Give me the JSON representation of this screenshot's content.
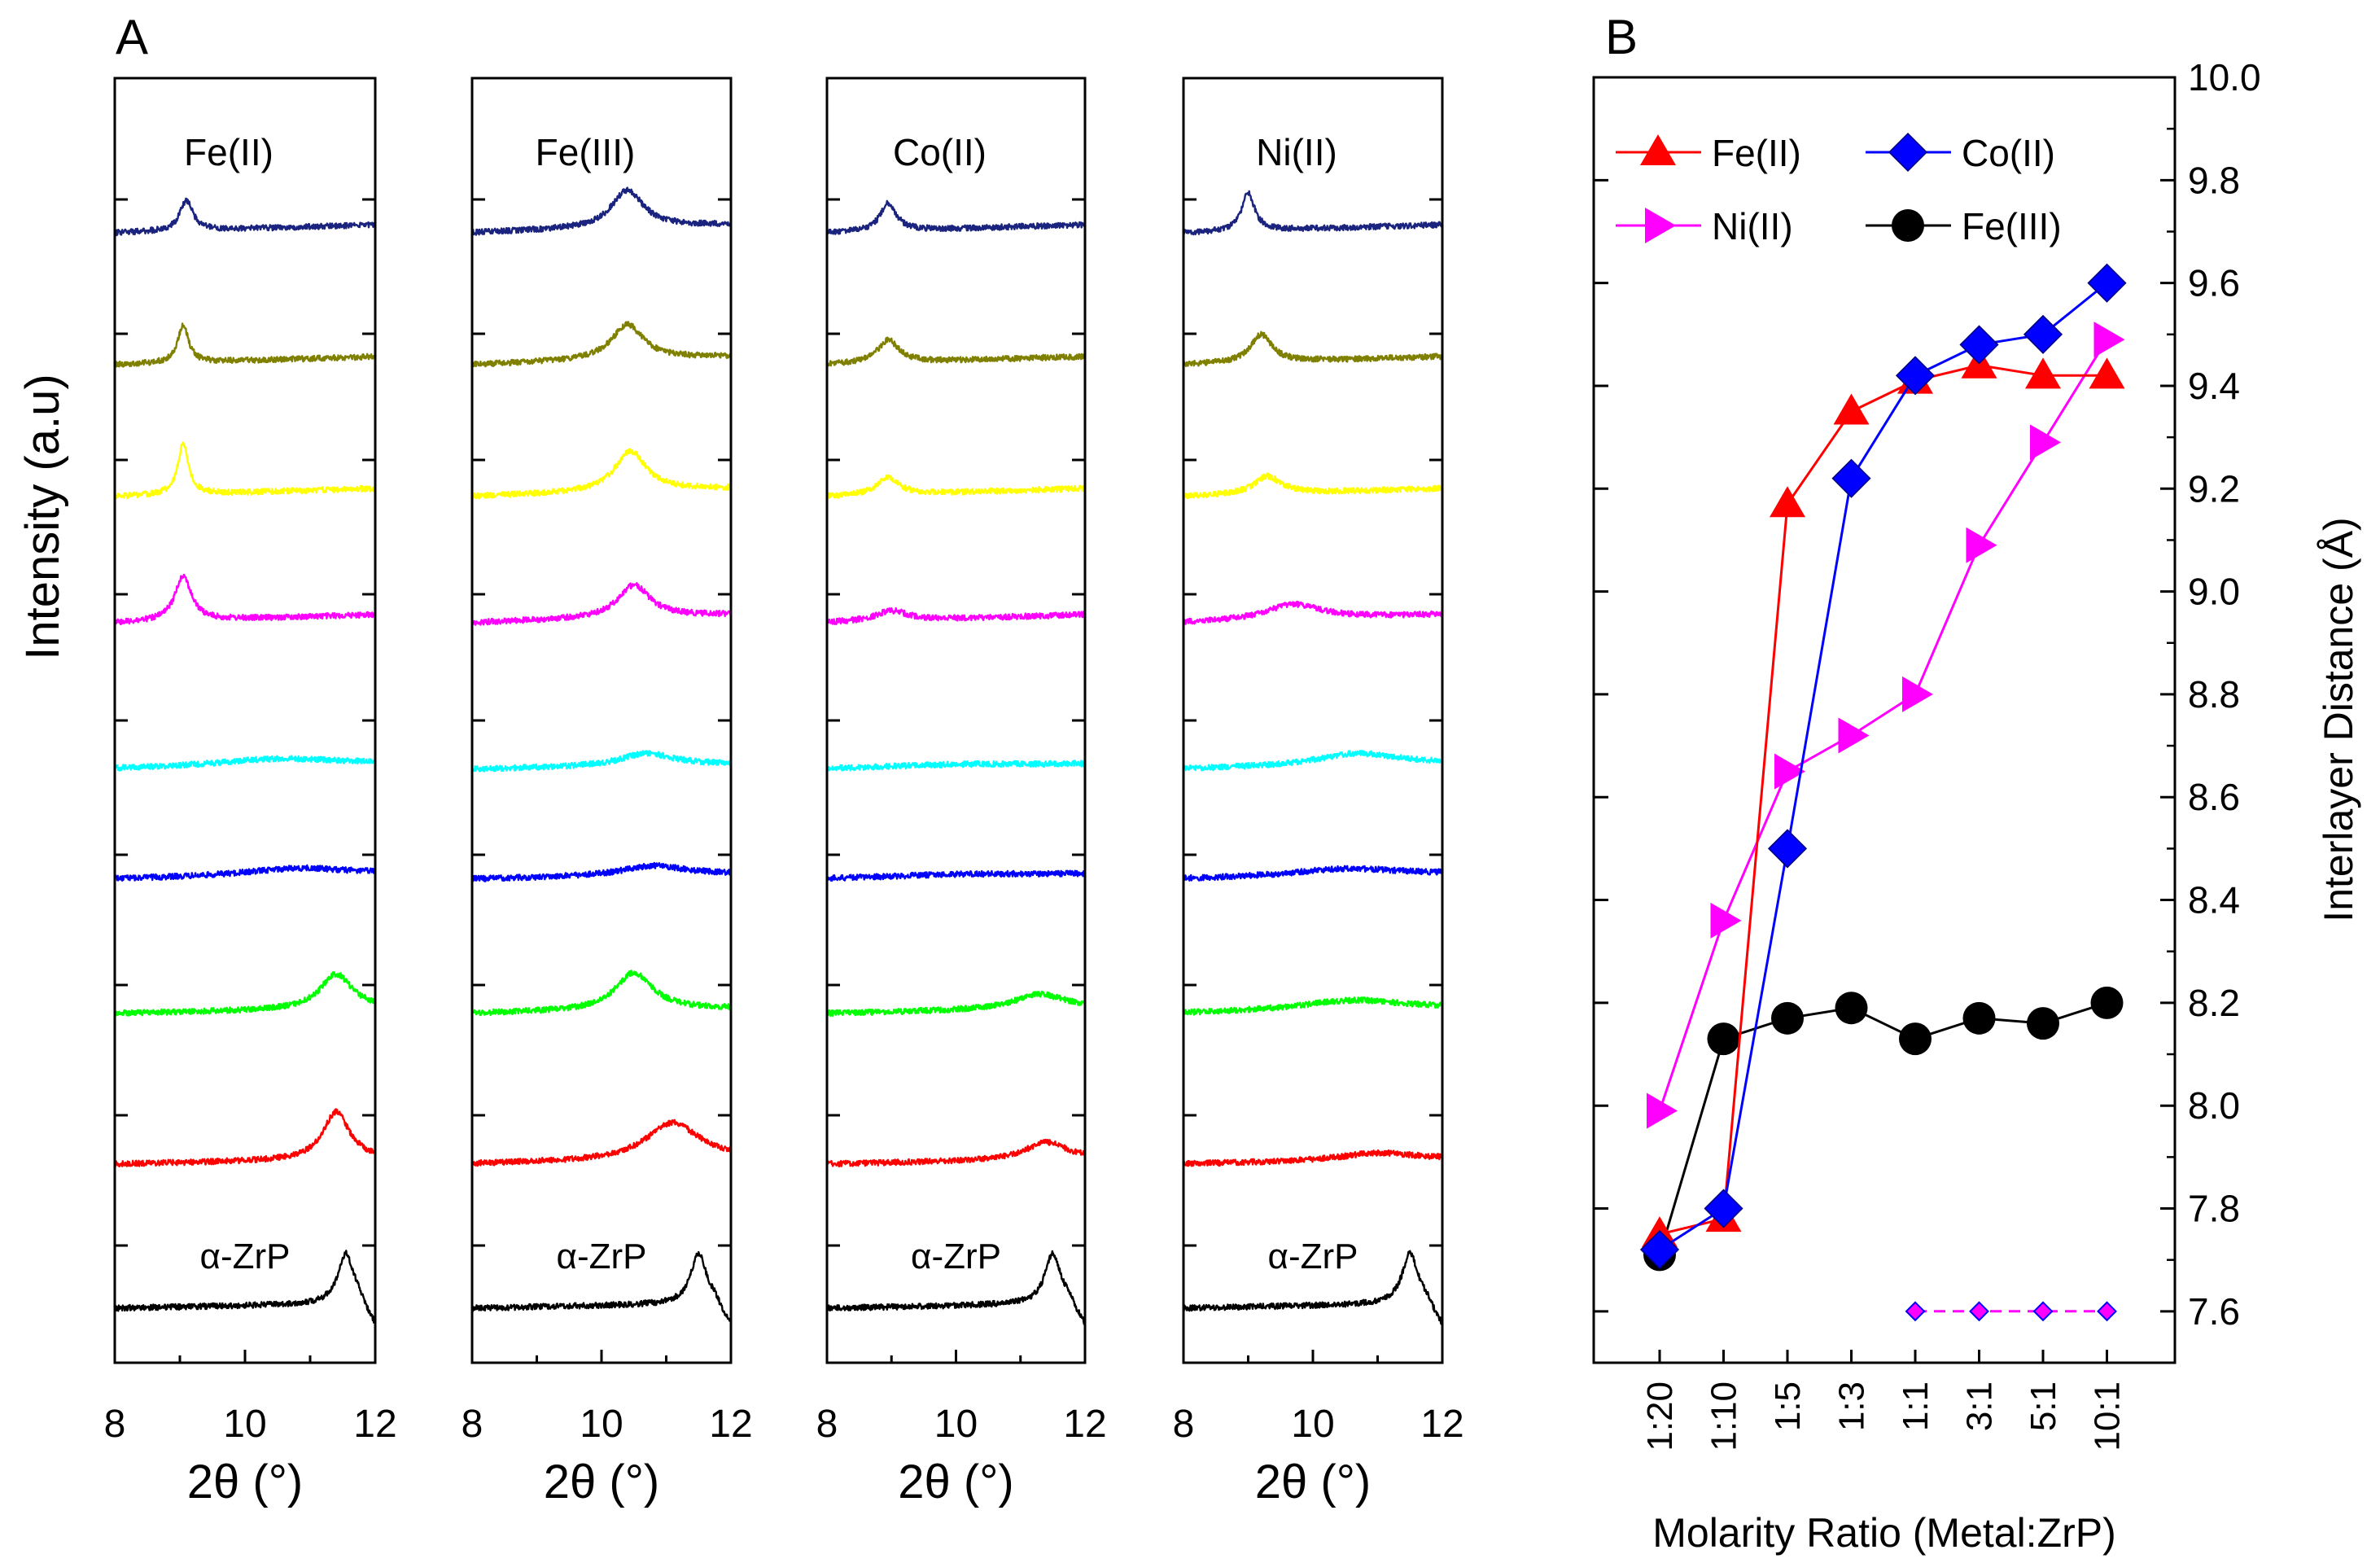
{
  "figure": {
    "panel_a_label": "A",
    "panel_b_label": "B"
  },
  "chart_data": [
    {
      "type": "line",
      "panel": "A",
      "title": "Fe(II)",
      "xlabel": "2θ (°)",
      "ylabel": "Intensity (a.u)",
      "xlim": [
        8,
        12
      ],
      "xticks": [
        "8",
        "10",
        "12"
      ],
      "reference_label": "α-ZrP",
      "grid": false,
      "stacked_traces": [
        {
          "color": "#1a237e",
          "peak_2theta": 9.1,
          "peak_height": 0.6,
          "peak_width": 0.12
        },
        {
          "color": "#808000",
          "peak_2theta": 9.05,
          "peak_height": 0.75,
          "peak_width": 0.1
        },
        {
          "color": "#ffff00",
          "peak_2theta": 9.05,
          "peak_height": 1.0,
          "peak_width": 0.1
        },
        {
          "color": "#ff00ff",
          "peak_2theta": 9.05,
          "peak_height": 0.9,
          "peak_width": 0.15
        },
        {
          "color": "#00ffff",
          "peak_2theta": 10.5,
          "peak_height": 0.15,
          "peak_width": 1.2
        },
        {
          "color": "#0000ff",
          "peak_2theta": 10.8,
          "peak_height": 0.15,
          "peak_width": 1.0
        },
        {
          "color": "#00ff00",
          "peak_2theta": 11.4,
          "peak_height": 0.7,
          "peak_width": 0.3
        },
        {
          "color": "#ff0000",
          "peak_2theta": 11.4,
          "peak_height": 0.95,
          "peak_width": 0.25
        },
        {
          "color": "#000000",
          "peak_2theta": 11.55,
          "peak_height": 1.0,
          "peak_width": 0.15
        }
      ]
    },
    {
      "type": "line",
      "panel": "A",
      "title": "Fe(III)",
      "xlabel": "2θ (°)",
      "xlim": [
        8,
        12
      ],
      "xticks": [
        "8",
        "10",
        "12"
      ],
      "reference_label": "α-ZrP",
      "grid": false,
      "stacked_traces": [
        {
          "color": "#1a237e",
          "peak_2theta": 10.4,
          "peak_height": 0.75,
          "peak_width": 0.3
        },
        {
          "color": "#808000",
          "peak_2theta": 10.4,
          "peak_height": 0.7,
          "peak_width": 0.3
        },
        {
          "color": "#ffff00",
          "peak_2theta": 10.45,
          "peak_height": 0.8,
          "peak_width": 0.3
        },
        {
          "color": "#ff00ff",
          "peak_2theta": 10.5,
          "peak_height": 0.65,
          "peak_width": 0.3
        },
        {
          "color": "#00ffff",
          "peak_2theta": 10.7,
          "peak_height": 0.25,
          "peak_width": 0.5
        },
        {
          "color": "#0000ff",
          "peak_2theta": 10.8,
          "peak_height": 0.2,
          "peak_width": 0.6
        },
        {
          "color": "#00ff00",
          "peak_2theta": 10.5,
          "peak_height": 0.75,
          "peak_width": 0.35
        },
        {
          "color": "#ff0000",
          "peak_2theta": 11.1,
          "peak_height": 0.75,
          "peak_width": 0.5
        },
        {
          "color": "#000000",
          "peak_2theta": 11.5,
          "peak_height": 1.0,
          "peak_width": 0.15
        }
      ]
    },
    {
      "type": "line",
      "panel": "A",
      "title": "Co(II)",
      "xlabel": "2θ (°)",
      "xlim": [
        8,
        12
      ],
      "xticks": [
        "8",
        "10",
        "12"
      ],
      "reference_label": "α-ZrP",
      "grid": false,
      "stacked_traces": [
        {
          "color": "#1a237e",
          "peak_2theta": 8.95,
          "peak_height": 0.55,
          "peak_width": 0.15
        },
        {
          "color": "#808000",
          "peak_2theta": 8.95,
          "peak_height": 0.45,
          "peak_width": 0.2
        },
        {
          "color": "#ffff00",
          "peak_2theta": 8.95,
          "peak_height": 0.35,
          "peak_width": 0.2
        },
        {
          "color": "#ff00ff",
          "peak_2theta": 9.0,
          "peak_height": 0.2,
          "peak_width": 0.3
        },
        {
          "color": "#00ffff",
          "peak_2theta": 10.0,
          "peak_height": 0.05,
          "peak_width": 1.5
        },
        {
          "color": "#0000ff",
          "peak_2theta": 10.0,
          "peak_height": 0.05,
          "peak_width": 1.5
        },
        {
          "color": "#00ff00",
          "peak_2theta": 11.3,
          "peak_height": 0.3,
          "peak_width": 0.5
        },
        {
          "color": "#ff0000",
          "peak_2theta": 11.4,
          "peak_height": 0.35,
          "peak_width": 0.4
        },
        {
          "color": "#000000",
          "peak_2theta": 11.5,
          "peak_height": 1.0,
          "peak_width": 0.15
        }
      ]
    },
    {
      "type": "line",
      "panel": "A",
      "title": "Ni(II)",
      "xlabel": "2θ (°)",
      "xlim": [
        8,
        12
      ],
      "xticks": [
        "8",
        "10",
        "12"
      ],
      "reference_label": "α-ZrP",
      "grid": false,
      "stacked_traces": [
        {
          "color": "#1a237e",
          "peak_2theta": 9.0,
          "peak_height": 0.75,
          "peak_width": 0.12
        },
        {
          "color": "#808000",
          "peak_2theta": 9.2,
          "peak_height": 0.55,
          "peak_width": 0.2
        },
        {
          "color": "#ffff00",
          "peak_2theta": 9.3,
          "peak_height": 0.35,
          "peak_width": 0.25
        },
        {
          "color": "#ff00ff",
          "peak_2theta": 9.7,
          "peak_height": 0.3,
          "peak_width": 0.5
        },
        {
          "color": "#00ffff",
          "peak_2theta": 10.7,
          "peak_height": 0.25,
          "peak_width": 0.8
        },
        {
          "color": "#0000ff",
          "peak_2theta": 10.5,
          "peak_height": 0.15,
          "peak_width": 1.0
        },
        {
          "color": "#00ff00",
          "peak_2theta": 10.6,
          "peak_height": 0.2,
          "peak_width": 1.0
        },
        {
          "color": "#ff0000",
          "peak_2theta": 11.0,
          "peak_height": 0.15,
          "peak_width": 0.7
        },
        {
          "color": "#000000",
          "peak_2theta": 11.5,
          "peak_height": 1.0,
          "peak_width": 0.15
        }
      ]
    },
    {
      "type": "line",
      "panel": "B",
      "xlabel": "Molarity Ratio (Metal:ZrP)",
      "ylabel": "Interlayer Distance (Å)",
      "categories": [
        "1:20",
        "1:10",
        "1:5",
        "1:3",
        "1:1",
        "3:1",
        "5:1",
        "10:1"
      ],
      "ylim": [
        7.5,
        10.0
      ],
      "yticks": [
        "7.6",
        "7.8",
        "8.0",
        "8.2",
        "8.4",
        "8.6",
        "8.8",
        "9.0",
        "9.2",
        "9.4",
        "9.6",
        "9.8",
        "10.0"
      ],
      "legend_position": "top-left",
      "grid": false,
      "series": [
        {
          "name": "Fe(II)",
          "color": "#ff0000",
          "marker": "triangle-up",
          "values": [
            7.75,
            7.78,
            9.17,
            9.35,
            9.41,
            9.44,
            9.42,
            9.42
          ]
        },
        {
          "name": "Co(II)",
          "color": "#0000ff",
          "marker": "diamond",
          "values": [
            7.72,
            7.8,
            8.5,
            9.22,
            9.42,
            9.48,
            9.5,
            9.6
          ]
        },
        {
          "name": "Ni(II)",
          "color": "#ff00ff",
          "marker": "triangle-right",
          "values": [
            7.99,
            8.36,
            8.65,
            8.72,
            8.8,
            9.09,
            9.29,
            9.49
          ]
        },
        {
          "name": "Fe(III)",
          "color": "#000000",
          "marker": "circle",
          "values": [
            7.71,
            8.13,
            8.17,
            8.19,
            8.13,
            8.17,
            8.16,
            8.2
          ]
        },
        {
          "name": "",
          "color": "#ff00ff",
          "marker": "diamond-small",
          "dashed": true,
          "values": [
            null,
            null,
            null,
            null,
            7.6,
            7.6,
            7.6,
            7.6
          ]
        }
      ]
    }
  ]
}
